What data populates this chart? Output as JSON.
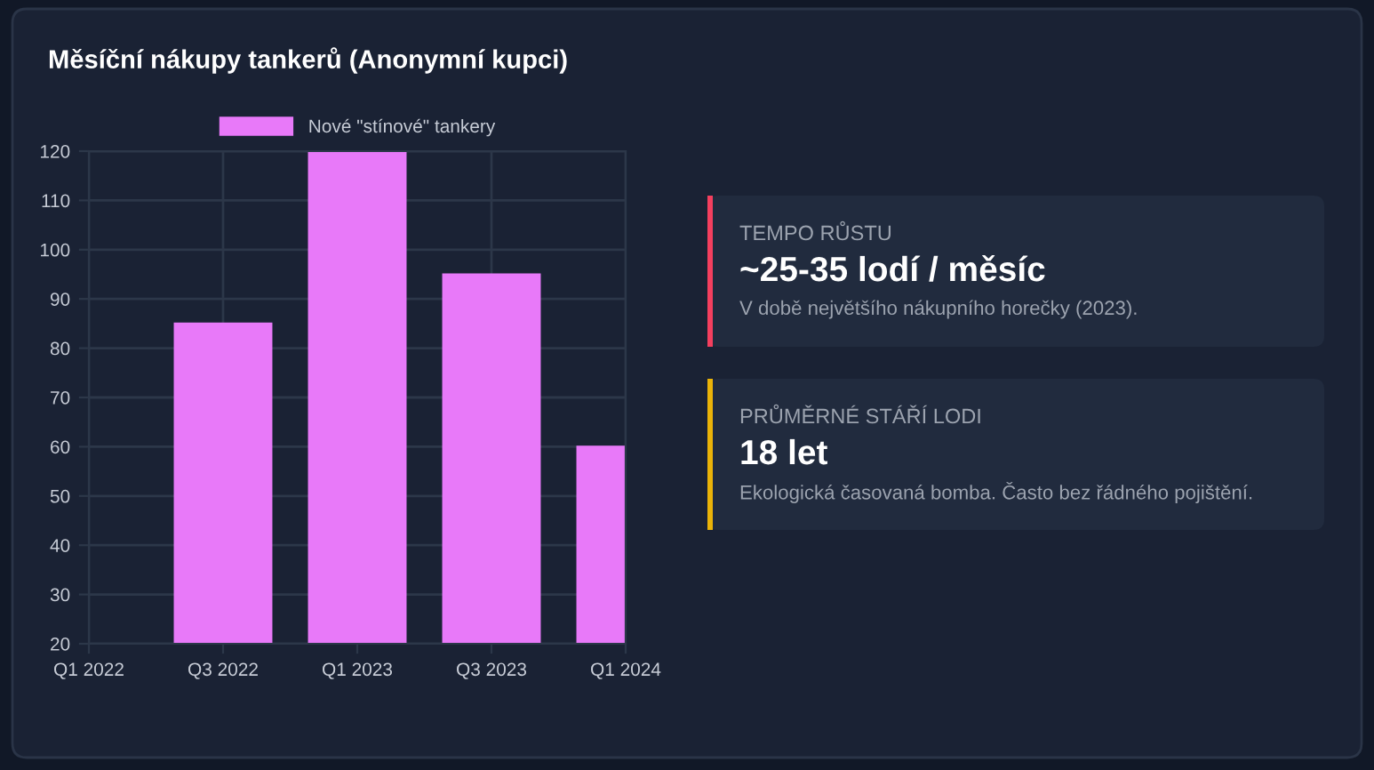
{
  "chart_data": [
    {
      "type": "bar",
      "title": "Měsíční nákupy tankerů (Anonymní kupci)",
      "categories": [
        "Q1 2022",
        "Q3 2022",
        "Q1 2023",
        "Q3 2023",
        "Q1 2024"
      ],
      "series": [
        {
          "name": "Nové \"stínové\" tankery",
          "color": "#e879f9",
          "values": [
            20,
            85,
            120,
            95,
            60
          ]
        }
      ],
      "ylim": [
        20,
        120
      ],
      "yticks": [
        20,
        30,
        40,
        50,
        60,
        70,
        80,
        90,
        100,
        110,
        120
      ],
      "grid": true,
      "legend": "top"
    },
    {
      "type": "other",
      "colors": [
        "#f43f5e",
        "#eab308"
      ],
      "annotations": [
        "TEMPO RŮSTU",
        "~25-35 lodí / měsíc",
        "V době největšího nákupního horečky (2023).",
        "PRŮMĚRNÉ STÁŘÍ LODI",
        "18 let",
        "Ekologická časovaná bomba. Často bez řádného pojištění."
      ]
    }
  ]
}
